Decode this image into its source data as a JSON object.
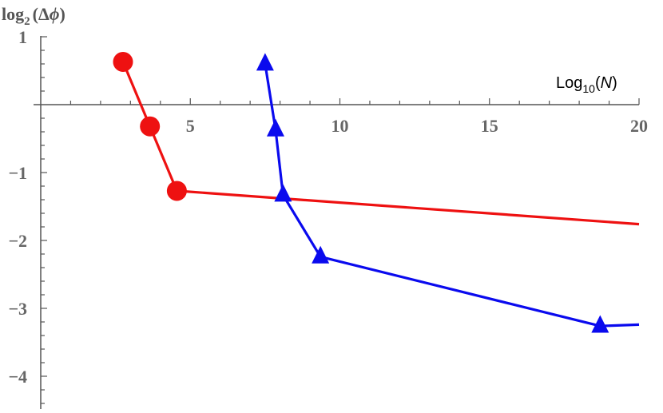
{
  "chart_data": {
    "type": "line",
    "title": "",
    "ylabel": {
      "prefix": "log",
      "sub": "2",
      "arg": "(Δ",
      "var": "ϕ",
      "close": ")"
    },
    "xlabel": {
      "prefix": "Log",
      "sub": "10",
      "open": "(",
      "var": "N",
      "close": ")"
    },
    "xlim": [
      0,
      20
    ],
    "ylim": [
      -4.5,
      1.1
    ],
    "x_ticks": [
      5,
      10,
      15,
      20
    ],
    "y_ticks": [
      1,
      -1,
      -2,
      -3,
      -4
    ],
    "x_tick_labels": [
      "5",
      "10",
      "15",
      "20"
    ],
    "y_tick_labels": [
      "1",
      "−1",
      "−2",
      "−3",
      "−4"
    ],
    "grid": false,
    "series": [
      {
        "marker": "circle",
        "color": "#ee1111",
        "x": [
          2.75,
          3.65,
          4.55,
          20
        ],
        "y": [
          0.63,
          -0.32,
          -1.27,
          -1.76
        ],
        "marker_count": 3
      },
      {
        "marker": "triangle",
        "color": "#0a0aee",
        "x": [
          7.5,
          7.85,
          8.1,
          9.35,
          18.7,
          20
        ],
        "y": [
          0.6,
          -0.37,
          -1.33,
          -2.24,
          -3.26,
          -3.24
        ],
        "marker_count": 5
      }
    ]
  }
}
